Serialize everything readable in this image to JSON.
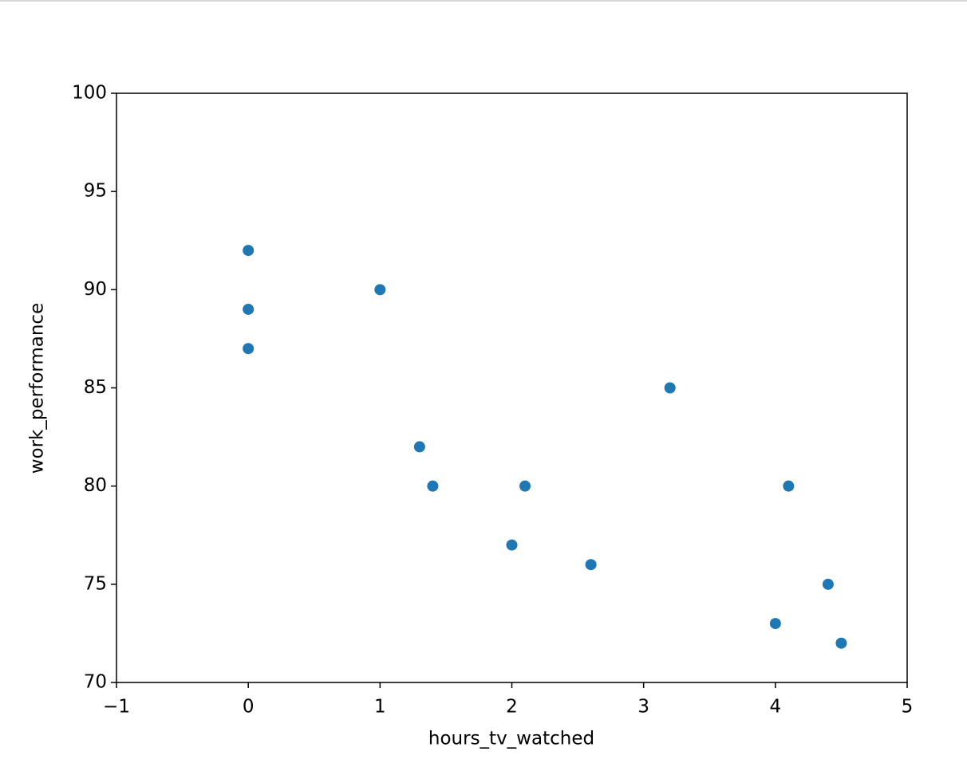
{
  "chart_data": {
    "type": "scatter",
    "x_label": "hours_tv_watched",
    "y_label": "work_performance",
    "series": [
      {
        "color": "#1f77b4",
        "x": [
          0,
          0,
          0,
          1,
          1.3,
          1.4,
          2.1,
          2,
          2.6,
          3.2,
          4.1,
          4.4,
          4,
          4.5
        ],
        "values": [
          92,
          89,
          87,
          90,
          82,
          80,
          80,
          77,
          76,
          85,
          80,
          75,
          73,
          72
        ]
      }
    ],
    "xlim": [
      -1,
      5
    ],
    "xticks": [
      {
        "value": -1,
        "label": "−1"
      },
      0,
      1,
      2,
      3,
      4,
      5
    ],
    "ylim": [
      70,
      100
    ],
    "yticks": [
      70,
      75,
      80,
      85,
      90,
      95,
      100
    ],
    "grid": false
  }
}
